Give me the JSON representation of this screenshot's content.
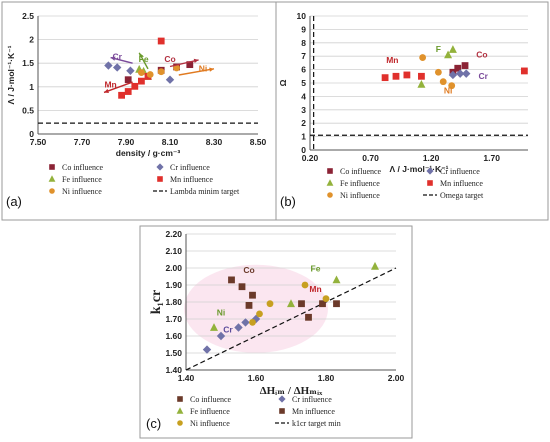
{
  "chart_data": [
    {
      "type": "scatter",
      "panel_label": "(a)",
      "xlabel": "density / g·cm⁻³",
      "ylabel": "Λ / J·mol⁻¹·K⁻¹",
      "xlim": [
        7.5,
        8.5
      ],
      "ylim": [
        0,
        2.5
      ],
      "xticks": [
        7.5,
        7.7,
        7.9,
        8.1,
        8.3,
        8.5
      ],
      "xtick_labels": [
        "7.50",
        "7.70",
        "7.90",
        "8.10",
        "8.30",
        "8.50"
      ],
      "yticks": [
        0,
        0.5,
        1,
        1.5,
        2,
        2.5
      ],
      "ytick_labels": [
        "0",
        "0.5",
        "1",
        "1.5",
        "2",
        "2.5"
      ],
      "grid": "horizontal",
      "series": [
        {
          "name": "Co influence",
          "color": "#8b2335",
          "marker": "square",
          "x": [
            7.91,
            8.06,
            8.13,
            8.19
          ],
          "y": [
            1.15,
            1.35,
            1.42,
            1.47
          ]
        },
        {
          "name": "Cr influence",
          "color": "#7072a8",
          "marker": "diamond",
          "x": [
            7.82,
            7.86,
            7.92,
            8.1
          ],
          "y": [
            1.45,
            1.41,
            1.34,
            1.15
          ]
        },
        {
          "name": "Fe influence",
          "color": "#93b23c",
          "marker": "triangle",
          "x": [
            7.96,
            7.98,
            8.0
          ],
          "y": [
            1.37,
            1.33,
            1.22
          ]
        },
        {
          "name": "Mn influence",
          "color": "#e0302c",
          "marker": "square",
          "x": [
            7.88,
            7.91,
            7.94,
            7.97,
            8.0,
            8.06
          ],
          "y": [
            0.82,
            0.9,
            1.01,
            1.12,
            1.22,
            1.97
          ]
        },
        {
          "name": "Ni influence",
          "color": "#e0922c",
          "marker": "circle",
          "x": [
            7.97,
            8.01,
            8.06,
            8.13
          ],
          "y": [
            1.3,
            1.26,
            1.32,
            1.4
          ]
        }
      ],
      "reference": {
        "name": "Lambda minim target",
        "y": 0.23
      },
      "annotations": [
        {
          "text": "Cr",
          "color": "#7a4a9a",
          "x": 7.86,
          "y": 1.58,
          "arrow_from": [
            7.93,
            1.5
          ],
          "arrow_to": [
            7.83,
            1.62
          ]
        },
        {
          "text": "Fe",
          "color": "#6a9a2c",
          "x": 7.98,
          "y": 1.53,
          "arrow_from": [
            8.0,
            1.38
          ],
          "arrow_to": [
            7.96,
            1.72
          ]
        },
        {
          "text": "Co",
          "color": "#b23040",
          "x": 8.1,
          "y": 1.53,
          "arrow_from": [
            8.1,
            1.43
          ],
          "arrow_to": [
            8.23,
            1.57
          ]
        },
        {
          "text": "Mn",
          "color": "#c0282c",
          "x": 7.83,
          "y": 0.98,
          "arrow_from": [
            7.93,
            1.1
          ],
          "arrow_to": [
            7.8,
            0.88
          ]
        },
        {
          "text": "Ni",
          "color": "#e07a20",
          "x": 8.25,
          "y": 1.32,
          "arrow_from": [
            8.14,
            1.25
          ],
          "arrow_to": [
            8.3,
            1.38
          ]
        }
      ]
    },
    {
      "type": "scatter",
      "panel_label": "(b)",
      "xlabel": "Λ / J·mol⁻¹·K⁻¹",
      "ylabel": "Ω",
      "xlim": [
        0.2,
        2.0
      ],
      "ylim": [
        0,
        10
      ],
      "xticks": [
        0.2,
        0.7,
        1.2,
        1.7
      ],
      "xtick_labels": [
        "0.20",
        "0.70",
        "1.20",
        "1.70"
      ],
      "yticks": [
        0,
        1,
        2,
        3,
        4,
        5,
        6,
        7,
        8,
        9,
        10
      ],
      "ytick_labels": [
        "0",
        "1",
        "2",
        "3",
        "4",
        "5",
        "6",
        "7",
        "8",
        "9",
        "10"
      ],
      "grid": "horizontal",
      "series": [
        {
          "name": "Co influence",
          "color": "#8b2335",
          "marker": "square",
          "x": [
            1.38,
            1.42,
            1.48
          ],
          "y": [
            5.8,
            6.1,
            6.3
          ]
        },
        {
          "name": "Cr influence",
          "color": "#7072a8",
          "marker": "diamond",
          "x": [
            1.38,
            1.44,
            1.49
          ],
          "y": [
            5.6,
            5.7,
            5.7
          ]
        },
        {
          "name": "Fe influence",
          "color": "#93b23c",
          "marker": "triangle",
          "x": [
            1.12,
            1.34,
            1.38
          ],
          "y": [
            4.9,
            7.1,
            7.5
          ]
        },
        {
          "name": "Mn influence",
          "color": "#e0302c",
          "marker": "square",
          "x": [
            0.82,
            0.91,
            1.0,
            1.12,
            1.97
          ],
          "y": [
            5.4,
            5.5,
            5.6,
            5.5,
            5.9
          ]
        },
        {
          "name": "Ni influence",
          "color": "#e0922c",
          "marker": "circle",
          "x": [
            1.13,
            1.26,
            1.3,
            1.37
          ],
          "y": [
            6.9,
            5.8,
            5.1,
            4.8
          ]
        }
      ],
      "reference_vertical": {
        "x": 0.23
      },
      "reference": {
        "name": "Omega target",
        "y": 1.1
      },
      "annotations": [
        {
          "text": "F",
          "color": "#6a9a2c",
          "x": 1.26,
          "y": 7.3
        },
        {
          "text": "Mn",
          "color": "#c0282c",
          "x": 0.88,
          "y": 6.5
        },
        {
          "text": "Co",
          "color": "#b23040",
          "x": 1.62,
          "y": 6.9
        },
        {
          "text": "Cr",
          "color": "#7a4a9a",
          "x": 1.63,
          "y": 5.3
        },
        {
          "text": "Ni",
          "color": "#e07a20",
          "x": 1.34,
          "y": 4.2
        }
      ]
    },
    {
      "type": "scatter",
      "panel_label": "(c)",
      "xlabel": "ΔHᵢₘ / ΔHₘᵢₓ",
      "ylabel": "k₁cr",
      "xlim": [
        1.4,
        2.0
      ],
      "ylim": [
        1.4,
        2.2
      ],
      "xticks": [
        1.4,
        1.6,
        1.8,
        2.0
      ],
      "xtick_labels": [
        "1.40",
        "1.60",
        "1.80",
        "2.00"
      ],
      "yticks": [
        1.4,
        1.5,
        1.6,
        1.7,
        1.8,
        1.9,
        2.0,
        2.1,
        2.2
      ],
      "ytick_labels": [
        "1.40",
        "1.50",
        "1.60",
        "1.70",
        "1.80",
        "1.90",
        "2.00",
        "2.10",
        "2.20"
      ],
      "grid": "horizontal",
      "series": [
        {
          "name": "Co influence",
          "color": "#6b3a2a",
          "marker": "square",
          "x": [
            1.53,
            1.56,
            1.58,
            1.59
          ],
          "y": [
            1.93,
            1.89,
            1.78,
            1.84
          ]
        },
        {
          "name": "Cr influence",
          "color": "#7072a8",
          "marker": "diamond",
          "x": [
            1.46,
            1.5,
            1.55,
            1.57,
            1.6
          ],
          "y": [
            1.52,
            1.6,
            1.65,
            1.68,
            1.7
          ]
        },
        {
          "name": "Fe influence",
          "color": "#93b23c",
          "marker": "triangle",
          "x": [
            1.48,
            1.7,
            1.83,
            1.94
          ],
          "y": [
            1.65,
            1.79,
            1.93,
            2.01
          ]
        },
        {
          "name": "Mn influence",
          "color": "#6b3a2a",
          "marker": "square",
          "x": [
            1.73,
            1.75,
            1.79,
            1.83
          ],
          "y": [
            1.79,
            1.71,
            1.79,
            1.79
          ]
        },
        {
          "name": "Ni influence",
          "color": "#c7a020",
          "marker": "circle",
          "x": [
            1.59,
            1.61,
            1.64,
            1.74,
            1.8
          ],
          "y": [
            1.68,
            1.73,
            1.79,
            1.9,
            1.82
          ]
        }
      ],
      "reference_line": {
        "name": "k1cr target min",
        "from": [
          1.4,
          1.4
        ],
        "to": [
          2.0,
          2.0
        ]
      },
      "annotations": [
        {
          "text": "Co",
          "color": "#6b3a2a",
          "x": 1.58,
          "y": 1.97
        },
        {
          "text": "Fe",
          "color": "#6a9a2c",
          "x": 1.77,
          "y": 1.98
        },
        {
          "text": "Mn",
          "color": "#c0282c",
          "x": 1.77,
          "y": 1.86
        },
        {
          "text": "Ni",
          "color": "#6a9a2c",
          "x": 1.5,
          "y": 1.72
        },
        {
          "text": "Cr",
          "color": "#5a4a9a",
          "x": 1.52,
          "y": 1.62
        }
      ]
    }
  ],
  "legend_a": [
    "Co influence",
    "Cr influence",
    "Fe influence",
    "Mn influence",
    "Ni influence",
    "Lambda minim target"
  ],
  "legend_b": [
    "Co influence",
    "Cr influence",
    "Fe influence",
    "Mn influence",
    "Ni influence",
    "Omega target"
  ],
  "legend_c": [
    "Co influence",
    "Cr influence",
    "Fe influence",
    "Mn influence",
    "Ni influence",
    "k1cr target min"
  ]
}
